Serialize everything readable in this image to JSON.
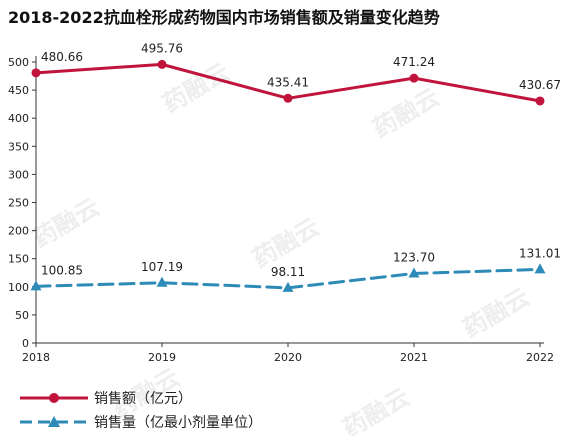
{
  "chart_data": {
    "type": "line",
    "title": "2018-2022抗血栓形成药物国内市场销售额及销量变化趋势",
    "categories": [
      "2018",
      "2019",
      "2020",
      "2021",
      "2022"
    ],
    "y_ticks": [
      "0",
      "50",
      "100",
      "150",
      "200",
      "250",
      "300",
      "350",
      "400",
      "450",
      "500"
    ],
    "ylim": [
      0,
      500
    ],
    "grid": false,
    "legend_position": "bottom-left",
    "series": [
      {
        "name": "销售额（亿元）",
        "color": "#c0143c",
        "marker": "circle",
        "line_style": "solid",
        "values": [
          480.66,
          495.76,
          435.41,
          471.24,
          430.67
        ],
        "labels": [
          "480.66",
          "495.76",
          "435.41",
          "471.24",
          "430.67"
        ]
      },
      {
        "name": "销售量（亿最小剂量单位）",
        "color": "#2e8bb8",
        "marker": "triangle",
        "line_style": "dashed",
        "values": [
          100.85,
          107.19,
          98.11,
          123.7,
          131.01
        ],
        "labels": [
          "100.85",
          "107.19",
          "98.11",
          "123.70",
          "131.01"
        ]
      }
    ]
  },
  "watermark": {
    "text": "药融云",
    "color": "#eeeeee"
  }
}
